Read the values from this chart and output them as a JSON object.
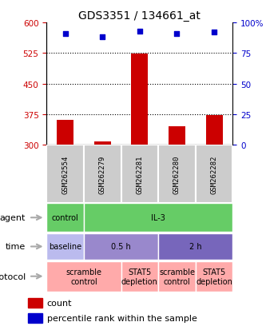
{
  "title": "GDS3351 / 134661_at",
  "samples": [
    "GSM262554",
    "GSM262279",
    "GSM262281",
    "GSM262280",
    "GSM262282"
  ],
  "counts": [
    362,
    308,
    524,
    345,
    373
  ],
  "percentile_ranks": [
    91,
    88,
    93,
    91,
    92
  ],
  "ylim_left": [
    300,
    600
  ],
  "yticks_left": [
    300,
    375,
    450,
    525,
    600
  ],
  "ylim_right": [
    0,
    100
  ],
  "yticks_right": [
    0,
    25,
    50,
    75,
    100
  ],
  "bar_color": "#cc0000",
  "dot_color": "#0000cc",
  "bar_bottom": 300,
  "agent_segments": [
    {
      "label": "control",
      "span": [
        0,
        1
      ],
      "color": "#66cc66"
    },
    {
      "label": "IL-3",
      "span": [
        1,
        5
      ],
      "color": "#66cc66"
    }
  ],
  "time_segments": [
    {
      "label": "baseline",
      "span": [
        0,
        1
      ],
      "color": "#bbbbee"
    },
    {
      "label": "0.5 h",
      "span": [
        1,
        3
      ],
      "color": "#9988cc"
    },
    {
      "label": "2 h",
      "span": [
        3,
        5
      ],
      "color": "#7766bb"
    }
  ],
  "protocol_segments": [
    {
      "label": "scramble\ncontrol",
      "span": [
        0,
        2
      ],
      "color": "#ffaaaa"
    },
    {
      "label": "STAT5\ndepletion",
      "span": [
        2,
        3
      ],
      "color": "#ffaaaa"
    },
    {
      "label": "scramble\ncontrol",
      "span": [
        3,
        4
      ],
      "color": "#ffaaaa"
    },
    {
      "label": "STAT5\ndepletion",
      "span": [
        4,
        5
      ],
      "color": "#ffaaaa"
    }
  ],
  "row_labels": [
    "agent",
    "time",
    "protocol"
  ],
  "tick_color_left": "#cc0000",
  "tick_color_right": "#0000cc",
  "grid_color": "#000000",
  "title_fontsize": 10,
  "sample_box_color": "#cccccc",
  "legend_count_color": "#cc0000",
  "legend_pct_color": "#0000cc"
}
